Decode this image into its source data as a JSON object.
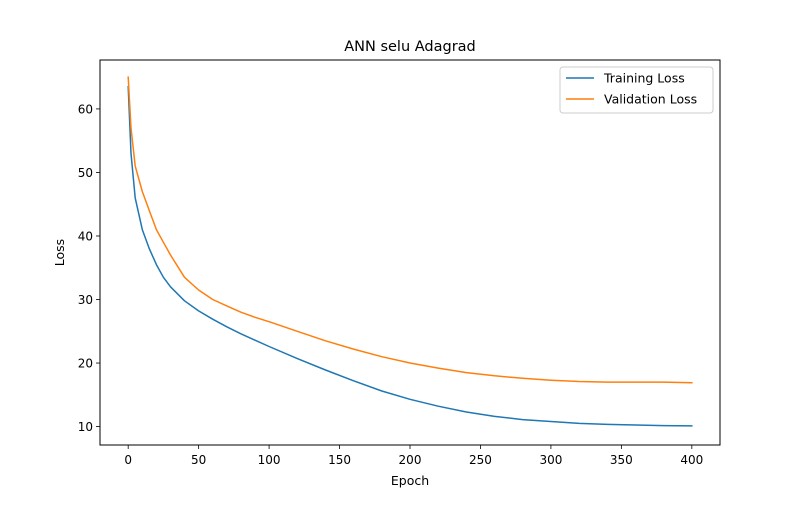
{
  "chart_data": {
    "type": "line",
    "title": "ANN selu Adagrad",
    "xlabel": "Epoch",
    "ylabel": "Loss",
    "xlim": [
      -20,
      420
    ],
    "ylim": [
      7.1,
      67.7
    ],
    "xticks": [
      0,
      50,
      100,
      150,
      200,
      250,
      300,
      350,
      400
    ],
    "yticks": [
      10,
      20,
      30,
      40,
      50,
      60
    ],
    "grid": false,
    "legend": "top-right",
    "series": [
      {
        "name": "Training Loss",
        "color": "#1f77b4",
        "x": [
          0,
          2,
          5,
          10,
          15,
          20,
          25,
          30,
          40,
          50,
          60,
          70,
          80,
          90,
          100,
          120,
          140,
          160,
          180,
          200,
          220,
          240,
          260,
          280,
          300,
          320,
          340,
          360,
          380,
          400
        ],
        "y": [
          63.5,
          53.0,
          46.0,
          41.0,
          38.0,
          35.5,
          33.5,
          32.0,
          29.8,
          28.2,
          26.9,
          25.7,
          24.6,
          23.6,
          22.6,
          20.7,
          18.9,
          17.2,
          15.6,
          14.3,
          13.2,
          12.3,
          11.6,
          11.1,
          10.8,
          10.5,
          10.35,
          10.25,
          10.15,
          10.1
        ]
      },
      {
        "name": "Validation Loss",
        "color": "#ff7f0e",
        "x": [
          0,
          2,
          5,
          10,
          15,
          20,
          25,
          30,
          40,
          50,
          60,
          70,
          80,
          90,
          100,
          120,
          140,
          160,
          180,
          200,
          220,
          240,
          260,
          280,
          300,
          320,
          340,
          360,
          380,
          400
        ],
        "y": [
          65.0,
          57.0,
          51.0,
          47.0,
          44.0,
          41.0,
          39.0,
          37.0,
          33.5,
          31.5,
          30.0,
          29.0,
          28.0,
          27.2,
          26.5,
          25.0,
          23.5,
          22.2,
          21.0,
          20.0,
          19.2,
          18.5,
          18.0,
          17.6,
          17.3,
          17.1,
          17.0,
          17.0,
          17.0,
          16.9
        ]
      }
    ]
  }
}
